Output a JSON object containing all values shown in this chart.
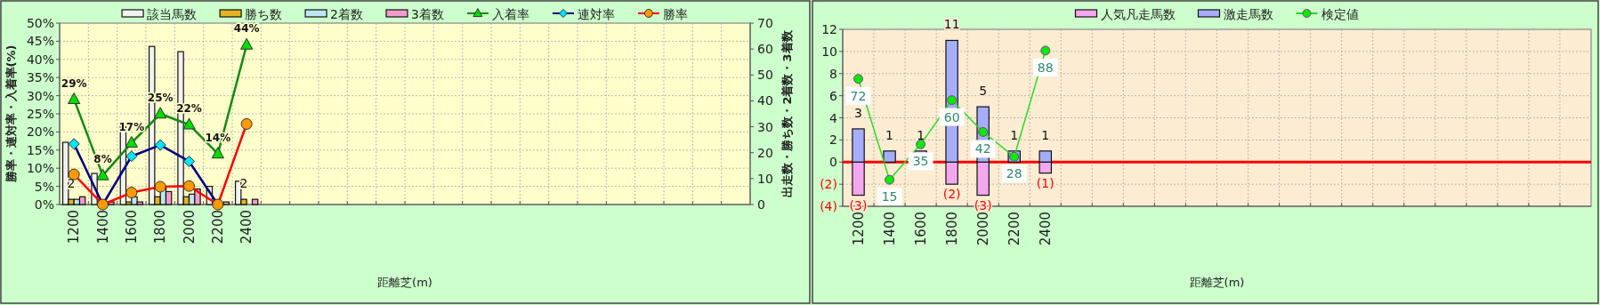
{
  "chart_data": [
    {
      "type": "bar",
      "xlabel": "距離芝(m)",
      "ylabel": "勝率・連対率・入着率(%)",
      "y2label": "出走数・勝ち数・2着数・3着数",
      "categories": [
        "1200",
        "1400",
        "1600",
        "1800",
        "2000",
        "2200",
        "2400",
        null,
        null,
        null,
        null,
        null,
        null,
        null,
        null,
        null,
        null,
        null,
        null,
        null,
        null,
        null,
        null,
        null
      ],
      "ylim": [
        0,
        50
      ],
      "yticks": [
        {
          "value": 0,
          "label": "0%"
        },
        {
          "value": 5,
          "label": "5%"
        },
        {
          "value": 10,
          "label": "10%"
        },
        {
          "value": 15,
          "label": "15%"
        },
        {
          "value": 20,
          "label": "20%"
        },
        {
          "value": 25,
          "label": "25%"
        },
        {
          "value": 30,
          "label": "30%"
        },
        {
          "value": 35,
          "label": "35%"
        },
        {
          "value": 40,
          "label": "40%"
        },
        {
          "value": 45,
          "label": "45%"
        },
        {
          "value": 50,
          "label": "50%"
        }
      ],
      "y2lim": [
        0,
        70
      ],
      "y2ticks": [
        0,
        10,
        20,
        30,
        40,
        50,
        60,
        70
      ],
      "grid": true,
      "legend": "top",
      "series": [
        {
          "name": "該当馬数",
          "axis": "y2",
          "color": "#f2f2f2",
          "values": [
            24,
            12,
            30,
            61,
            59,
            7,
            9,
            null,
            null,
            null,
            null,
            null,
            null,
            null,
            null,
            null,
            null,
            null,
            null,
            null,
            null,
            null,
            null,
            null
          ]
        },
        {
          "name": "勝ち数",
          "axis": "y2",
          "color": "#e6b422",
          "values": [
            2,
            0,
            1,
            3,
            3,
            0,
            2,
            null,
            null,
            null,
            null,
            null,
            null,
            null,
            null,
            null,
            null,
            null,
            null,
            null,
            null,
            null,
            null,
            null
          ],
          "value_labels": [
            "2",
            null,
            null,
            null,
            null,
            null,
            "2",
            null,
            null,
            null,
            null,
            null,
            null,
            null,
            null,
            null,
            null,
            null,
            null,
            null,
            null,
            null,
            null,
            null
          ]
        },
        {
          "name": "2着数",
          "axis": "y2",
          "color": "#bde6f0",
          "values": [
            2,
            0,
            3,
            7,
            4,
            0,
            0,
            null,
            null,
            null,
            null,
            null,
            null,
            null,
            null,
            null,
            null,
            null,
            null,
            null,
            null,
            null,
            null,
            null
          ]
        },
        {
          "name": "3着数",
          "axis": "y2",
          "color": "#f29ccb",
          "values": [
            3,
            1,
            1,
            5,
            6,
            1,
            2,
            null,
            null,
            null,
            null,
            null,
            null,
            null,
            null,
            null,
            null,
            null,
            null,
            null,
            null,
            null,
            null,
            null
          ]
        },
        {
          "name": "入着率",
          "type": "line",
          "color": "#138a13",
          "marker": "triangle",
          "values": [
            29,
            8,
            17,
            25,
            22,
            14,
            44,
            null,
            null,
            null,
            null,
            null,
            null,
            null,
            null,
            null,
            null,
            null,
            null,
            null,
            null,
            null,
            null,
            null
          ],
          "colors": [
            "#00dd00",
            "#00dd00",
            "#00dd00",
            "#00dd00",
            "#00dd00",
            "#00dd00",
            "#00dd00",
            null,
            null,
            null,
            null,
            null,
            null,
            null,
            null,
            null,
            null,
            null,
            null,
            null,
            null,
            null,
            null,
            null
          ],
          "value_labels": [
            "29%",
            "8%",
            "17%",
            "25%",
            "22%",
            "14%",
            "44%",
            null,
            null,
            null,
            null,
            null,
            null,
            null,
            null,
            null,
            null,
            null,
            null,
            null,
            null,
            null,
            null,
            null
          ]
        },
        {
          "name": "連対率",
          "type": "line",
          "color": "#000080",
          "marker": "diamond",
          "values": [
            16.7,
            0,
            13.3,
            16.4,
            11.9,
            0,
            null,
            null,
            null,
            null,
            null,
            null,
            null,
            null,
            null,
            null,
            null,
            null,
            null,
            null,
            null,
            null,
            null,
            null
          ],
          "colors": [
            "#00e5ff",
            "#00e5ff",
            "#00e5ff",
            "#00e5ff",
            "#00e5ff",
            "#00e5ff",
            null,
            null,
            null,
            null,
            null,
            null,
            null,
            null,
            null,
            null,
            null,
            null,
            null,
            null,
            null,
            null,
            null,
            null
          ]
        },
        {
          "name": "勝率",
          "type": "line",
          "color": "#ff0000",
          "marker": "circle",
          "values": [
            8.3,
            0,
            3.3,
            4.9,
            5.1,
            0,
            22.2,
            null,
            null,
            null,
            null,
            null,
            null,
            null,
            null,
            null,
            null,
            null,
            null,
            null,
            null,
            null,
            null,
            null
          ],
          "colors": [
            "#ff9900",
            "#ff9900",
            "#ff9900",
            "#ff9900",
            "#ff9900",
            "#ff9900",
            "#ff9900",
            null,
            null,
            null,
            null,
            null,
            null,
            null,
            null,
            null,
            null,
            null,
            null,
            null,
            null,
            null,
            null,
            null
          ]
        }
      ]
    },
    {
      "type": "bar",
      "xlabel": "距離芝(m)",
      "stacked": true,
      "categories": [
        "1200",
        "1400",
        "1600",
        "1800",
        "2000",
        "2200",
        "2400",
        null,
        null,
        null,
        null,
        null,
        null,
        null,
        null,
        null,
        null,
        null,
        null,
        null,
        null,
        null,
        null,
        null
      ],
      "ylim": [
        -4,
        12
      ],
      "yticks": [
        {
          "value": -4,
          "label": "(4)"
        },
        {
          "value": -2,
          "label": "(2)"
        },
        0,
        2,
        4,
        6,
        8,
        10,
        12
      ],
      "y2lim": [
        0,
        100
      ],
      "grid": true,
      "legend": "top",
      "ref_lines": [
        {
          "axis": "y",
          "value": 0,
          "color": "#ff0000"
        }
      ],
      "series": [
        {
          "name": "人気凡走馬数",
          "color": "#f4a6ee",
          "values": [
            -3,
            null,
            null,
            -2,
            -3,
            null,
            -1,
            null,
            null,
            null,
            null,
            null,
            null,
            null,
            null,
            null,
            null,
            null,
            null,
            null,
            null,
            null,
            null,
            null
          ],
          "value_labels": [
            "(3)",
            null,
            null,
            "(2)",
            "(3)",
            null,
            "(1)",
            null,
            null,
            null,
            null,
            null,
            null,
            null,
            null,
            null,
            null,
            null,
            null,
            null,
            null,
            null,
            null,
            null
          ]
        },
        {
          "name": "激走馬数",
          "color": "#a6aefc",
          "values": [
            3,
            1,
            1,
            11,
            5,
            1,
            1,
            null,
            null,
            null,
            null,
            null,
            null,
            null,
            null,
            null,
            null,
            null,
            null,
            null,
            null,
            null,
            null,
            null
          ],
          "value_labels": [
            "3",
            "1",
            "1",
            "11",
            "5",
            "1",
            "1",
            null,
            null,
            null,
            null,
            null,
            null,
            null,
            null,
            null,
            null,
            null,
            null,
            null,
            null,
            null,
            null,
            null
          ]
        },
        {
          "name": "検定値",
          "type": "line",
          "axis": "y2",
          "color": "#22dd22",
          "marker": "circle",
          "values": [
            72,
            15,
            35,
            60,
            42,
            28,
            88,
            null,
            null,
            null,
            null,
            null,
            null,
            null,
            null,
            null,
            null,
            null,
            null,
            null,
            null,
            null,
            null,
            null
          ],
          "colors": [
            "#00ee00",
            "#00ee00",
            "#00ee00",
            "#00ee00",
            "#00ee00",
            "#00ee00",
            "#00ee00",
            null,
            null,
            null,
            null,
            null,
            null,
            null,
            null,
            null,
            null,
            null,
            null,
            null,
            null,
            null,
            null,
            null
          ],
          "value_labels": [
            "72",
            "15",
            "35",
            "60",
            "42",
            "28",
            "88",
            null,
            null,
            null,
            null,
            null,
            null,
            null,
            null,
            null,
            null,
            null,
            null,
            null,
            null,
            null,
            null,
            null
          ]
        }
      ]
    }
  ]
}
